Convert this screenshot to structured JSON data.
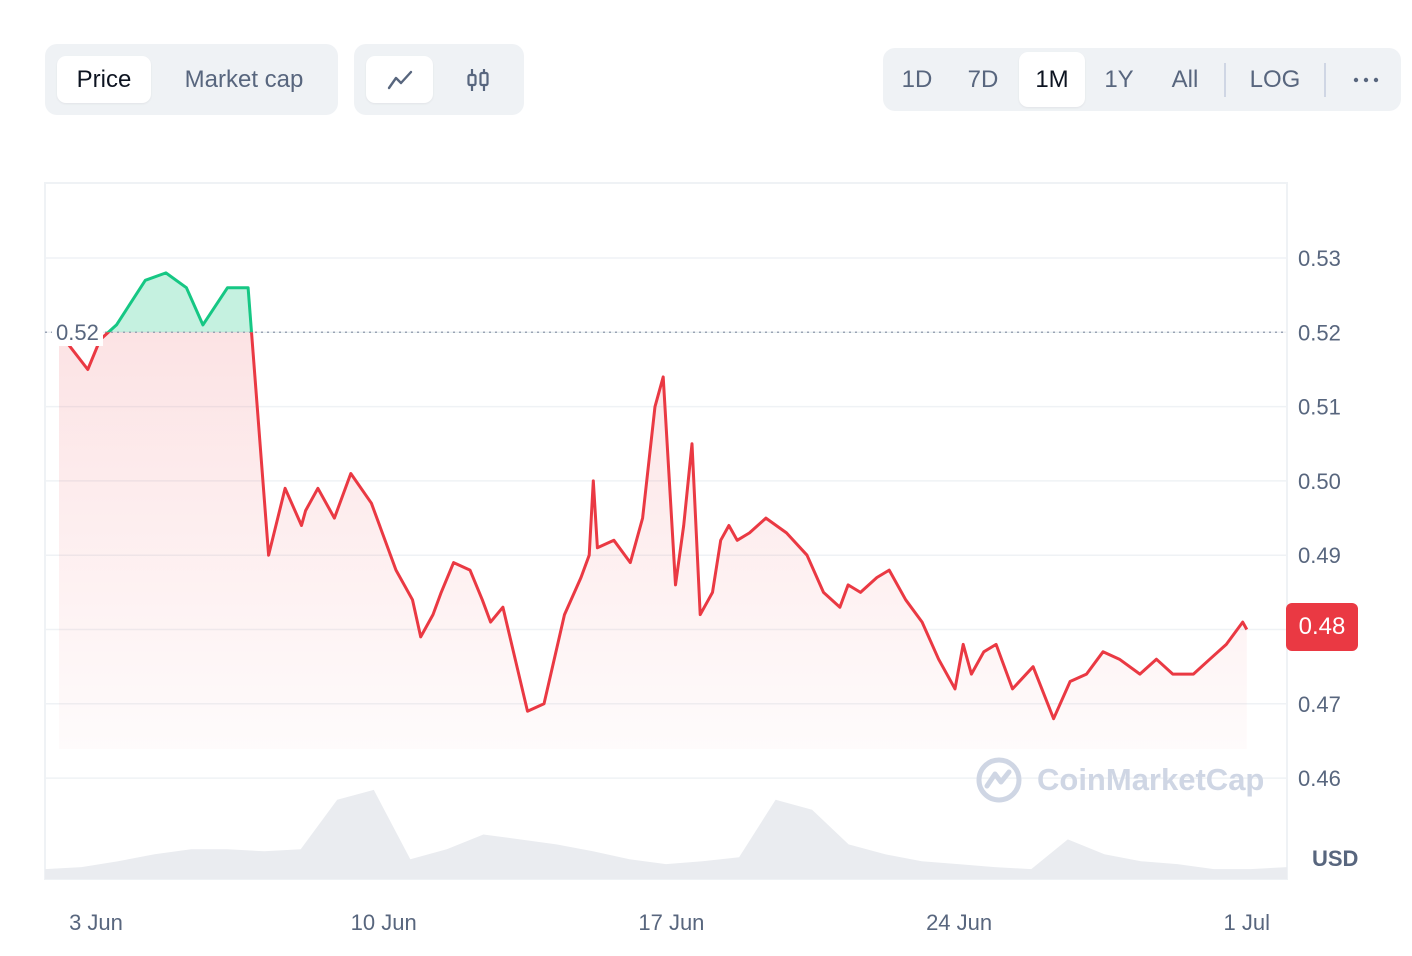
{
  "toolbar": {
    "metric_tabs": [
      {
        "label": "Price",
        "active": true
      },
      {
        "label": "Market cap",
        "active": false
      }
    ],
    "chart_type_buttons": [
      {
        "icon": "line-chart-icon",
        "active": true
      },
      {
        "icon": "candlestick-icon",
        "active": false
      }
    ],
    "ranges": [
      {
        "label": "1D",
        "active": false
      },
      {
        "label": "7D",
        "active": false
      },
      {
        "label": "1M",
        "active": true
      },
      {
        "label": "1Y",
        "active": false
      },
      {
        "label": "All",
        "active": false
      }
    ],
    "log_label": "LOG",
    "more_icon": "more-horizontal-icon"
  },
  "chart": {
    "reference_label": "0.52",
    "last_price_label": "0.48",
    "currency_label": "USD",
    "watermark": "CoinMarketCap",
    "colors": {
      "up": "#16c784",
      "down": "#ea3943",
      "grid": "#eff2f5",
      "volume": "#eaecf0"
    }
  },
  "chart_data": {
    "type": "line",
    "reference_value": 0.52,
    "ylim": [
      0.45,
      0.54
    ],
    "yticks": [
      0.46,
      0.47,
      0.48,
      0.49,
      0.5,
      0.51,
      0.52,
      0.53
    ],
    "ytick_labels": [
      "0.46",
      "0.47",
      "0.48",
      "0.49",
      "0.50",
      "0.51",
      "0.52",
      "0.53"
    ],
    "xlim": [
      2.1,
      31.0
    ],
    "xticks": [
      3,
      10,
      17,
      24,
      31
    ],
    "xtick_labels": [
      "3 Jun",
      "10 Jun",
      "17 Jun",
      "24 Jun",
      "1 Jul"
    ],
    "x": [
      2.1,
      2.8,
      3.1,
      3.5,
      4.2,
      4.7,
      5.2,
      5.6,
      6.2,
      6.7,
      7.2,
      7.6,
      8.0,
      8.1,
      8.4,
      8.8,
      9.2,
      9.7,
      10.3,
      10.7,
      10.9,
      11.2,
      11.4,
      11.7,
      12.1,
      12.4,
      12.6,
      12.9,
      13.2,
      13.5,
      13.9,
      14.4,
      14.8,
      15.0,
      15.1,
      15.2,
      15.6,
      16.0,
      16.3,
      16.6,
      16.8,
      17.1,
      17.3,
      17.5,
      17.7,
      17.9,
      18.0,
      18.2,
      18.4,
      18.6,
      18.9,
      19.3,
      19.8,
      20.3,
      20.7,
      21.1,
      21.3,
      21.6,
      22.0,
      22.3,
      22.7,
      23.1,
      23.5,
      23.9,
      24.1,
      24.3,
      24.6,
      24.9,
      25.3,
      25.8,
      26.3,
      26.7,
      27.1,
      27.5,
      27.9,
      28.4,
      28.8,
      29.2,
      29.7,
      30.1,
      30.5,
      30.9,
      31.0
    ],
    "values": [
      0.52,
      0.515,
      0.519,
      0.521,
      0.527,
      0.528,
      0.526,
      0.521,
      0.526,
      0.526,
      0.49,
      0.499,
      0.494,
      0.496,
      0.499,
      0.495,
      0.501,
      0.497,
      0.488,
      0.484,
      0.479,
      0.482,
      0.485,
      0.489,
      0.488,
      0.484,
      0.481,
      0.483,
      0.476,
      0.469,
      0.47,
      0.482,
      0.487,
      0.49,
      0.5,
      0.491,
      0.492,
      0.489,
      0.495,
      0.51,
      0.514,
      0.486,
      0.494,
      0.505,
      0.482,
      0.484,
      0.485,
      0.492,
      0.494,
      0.492,
      0.493,
      0.495,
      0.493,
      0.49,
      0.485,
      0.483,
      0.486,
      0.485,
      0.487,
      0.488,
      0.484,
      0.481,
      0.476,
      0.472,
      0.478,
      0.474,
      0.477,
      0.478,
      0.472,
      0.475,
      0.468,
      0.473,
      0.474,
      0.477,
      0.476,
      0.474,
      0.476,
      0.474,
      0.474,
      0.476,
      0.478,
      0.481,
      0.48
    ],
    "volume_profile": [
      0.1,
      0.12,
      0.18,
      0.25,
      0.3,
      0.3,
      0.28,
      0.3,
      0.8,
      0.9,
      0.2,
      0.3,
      0.45,
      0.4,
      0.35,
      0.28,
      0.2,
      0.15,
      0.18,
      0.22,
      0.8,
      0.7,
      0.35,
      0.25,
      0.18,
      0.15,
      0.12,
      0.1,
      0.4,
      0.25,
      0.18,
      0.15,
      0.1,
      0.1,
      0.12
    ],
    "legend": "none",
    "grid": true
  }
}
